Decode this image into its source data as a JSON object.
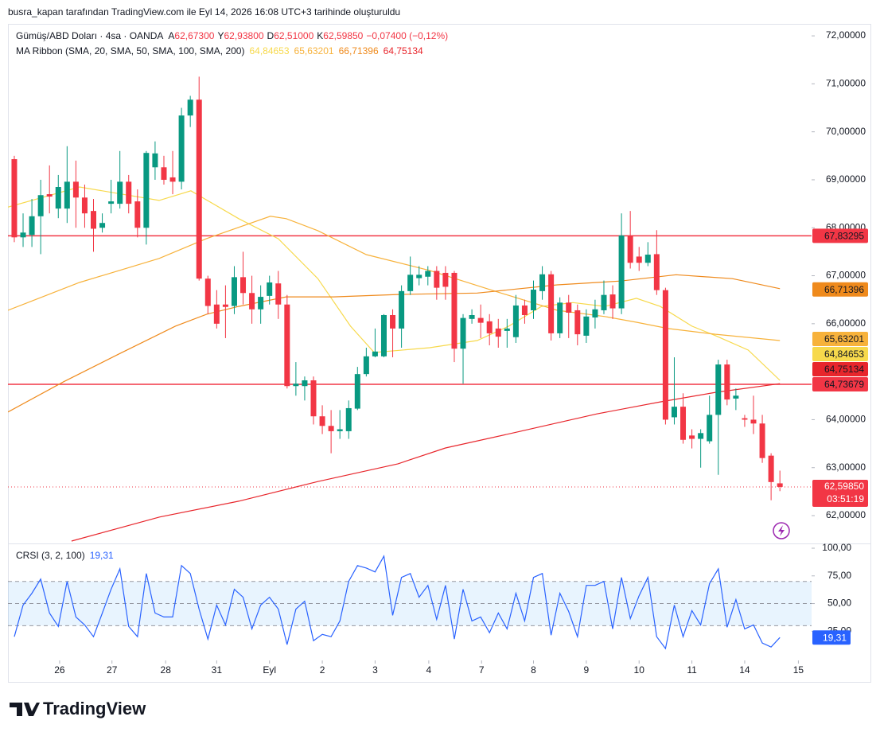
{
  "header": {
    "caption": "busra_kapan tarafından TradingView.com ile Eyl 14, 2026 16:08 UTC+3 tarihinde oluşturuldu",
    "symbol": "Gümüş/ABD Doları · 4sa · OANDA",
    "ohlc": [
      {
        "key": "A",
        "value": "62,67300"
      },
      {
        "key": "Y",
        "value": "62,93800"
      },
      {
        "key": "D",
        "value": "62,51000"
      },
      {
        "key": "K",
        "value": "62,59850"
      }
    ],
    "change": "−0,07400 (−0,12%)",
    "indicator": "MA Ribbon (SMA, 20, SMA, 50, SMA, 100, SMA, 200)",
    "brand": "TradingView"
  },
  "chart_data": [
    {
      "type": "candlestick",
      "up_color": "#089981",
      "down_color": "#f23645",
      "xlim": [
        -0.72,
        90.6
      ],
      "ylim": [
        61.42,
        72.25
      ],
      "xticks": [
        {
          "value": 5.15,
          "label": "26"
        },
        {
          "value": 11.1,
          "label": "27"
        },
        {
          "value": 17.2,
          "label": "28"
        },
        {
          "value": 23.0,
          "label": "31"
        },
        {
          "value": 29.0,
          "label": "Eyl"
        },
        {
          "value": 35.0,
          "label": "2"
        },
        {
          "value": 41.0,
          "label": "3"
        },
        {
          "value": 47.1,
          "label": "4"
        },
        {
          "value": 53.1,
          "label": "7"
        },
        {
          "value": 59.0,
          "label": "8"
        },
        {
          "value": 65.0,
          "label": "9"
        },
        {
          "value": 71.0,
          "label": "10"
        },
        {
          "value": 77.0,
          "label": "11"
        },
        {
          "value": 83.0,
          "label": "14"
        },
        {
          "value": 89.1,
          "label": "15"
        }
      ],
      "yticks": [
        {
          "value": 72,
          "label": "72,00000"
        },
        {
          "value": 71,
          "label": "71,00000"
        },
        {
          "value": 70,
          "label": "70,00000"
        },
        {
          "value": 69,
          "label": "69,00000"
        },
        {
          "value": 68,
          "label": "68,00000"
        },
        {
          "value": 67,
          "label": "67,00000"
        },
        {
          "value": 66,
          "label": "66,00000"
        },
        {
          "value": 64,
          "label": "64,00000"
        },
        {
          "value": 63,
          "label": "63,00000"
        },
        {
          "value": 62,
          "label": "62,00000"
        }
      ],
      "open": [
        69.43,
        67.8,
        67.85,
        68.24,
        68.7,
        68.4,
        68.4,
        68.96,
        68.63,
        68.35,
        68.0,
        68.5,
        68.5,
        68.96,
        68.55,
        68.0,
        69.26,
        69.26,
        69.05,
        68.96,
        70.34,
        70.67,
        66.94,
        66.4,
        66.4,
        66.37,
        66.97,
        66.64,
        66.3,
        66.58,
        66.84,
        66.4,
        64.7,
        64.7,
        64.82,
        64.07,
        63.87,
        63.76,
        63.76,
        64.23,
        64.95,
        65.32,
        65.32,
        66.18,
        65.9,
        66.68,
        66.95,
        66.98,
        67.1,
        67.06,
        67.06,
        65.48,
        66.1,
        66.12,
        66.05,
        65.9,
        65.85,
        65.72,
        66.38,
        66.28,
        66.68,
        67.03,
        65.8,
        66.44,
        66.28,
        65.75,
        66.13,
        66.28,
        66.61,
        66.32,
        67.84,
        67.4,
        67.27,
        67.45,
        66.7,
        64.05,
        64.27,
        63.67,
        63.6,
        63.55,
        64.1,
        65.15,
        64.44,
        64.03,
        64.0,
        63.92,
        63.25,
        62.673
      ],
      "high": [
        69.5,
        68.3,
        68.6,
        69.0,
        69.3,
        69.1,
        69.7,
        69.4,
        68.9,
        68.6,
        68.3,
        69.0,
        69.6,
        69.1,
        68.8,
        69.6,
        69.8,
        69.5,
        69.6,
        70.5,
        70.75,
        71.15,
        67.0,
        66.7,
        66.8,
        67.2,
        67.5,
        67.0,
        66.8,
        67.0,
        67.1,
        66.6,
        65.2,
        64.9,
        64.9,
        64.3,
        64.2,
        64.2,
        64.4,
        65.1,
        65.5,
        65.9,
        66.2,
        66.3,
        66.8,
        67.4,
        67.2,
        67.2,
        67.2,
        67.2,
        67.1,
        66.2,
        66.3,
        66.4,
        66.2,
        66.1,
        66.1,
        66.6,
        66.5,
        66.9,
        67.2,
        67.1,
        66.55,
        66.6,
        66.4,
        66.3,
        66.5,
        66.9,
        66.8,
        68.3,
        68.35,
        67.6,
        67.7,
        67.95,
        66.75,
        65.3,
        64.55,
        63.8,
        63.8,
        64.5,
        65.25,
        65.25,
        64.65,
        64.1,
        64.5,
        64.1,
        63.3,
        62.938
      ],
      "low": [
        67.7,
        67.6,
        67.6,
        67.45,
        68.3,
        68.2,
        68.1,
        68.0,
        68.0,
        67.5,
        67.9,
        68.3,
        68.4,
        68.3,
        67.8,
        67.65,
        69.0,
        68.9,
        68.7,
        68.8,
        70.1,
        66.9,
        66.2,
        65.9,
        65.7,
        66.2,
        66.4,
        66.0,
        66.0,
        66.4,
        66.1,
        64.65,
        64.5,
        64.4,
        63.9,
        63.7,
        63.3,
        63.6,
        63.6,
        64.2,
        64.9,
        65.3,
        65.3,
        65.3,
        65.5,
        66.6,
        66.8,
        66.8,
        66.5,
        66.5,
        65.2,
        64.75,
        66.0,
        65.7,
        65.55,
        65.5,
        65.5,
        65.6,
        66.0,
        66.1,
        66.5,
        65.65,
        65.7,
        65.7,
        65.55,
        65.6,
        65.9,
        66.2,
        66.1,
        66.2,
        67.15,
        67.1,
        67.2,
        66.6,
        63.9,
        63.9,
        63.5,
        63.4,
        63.0,
        63.5,
        62.85,
        64.3,
        64.2,
        63.85,
        63.7,
        63.1,
        62.32,
        62.51
      ],
      "close": [
        67.8,
        67.9,
        68.24,
        68.68,
        68.65,
        68.85,
        68.96,
        68.63,
        68.3,
        67.98,
        68.1,
        68.55,
        68.96,
        68.5,
        68.0,
        69.56,
        69.55,
        69.0,
        68.96,
        70.34,
        70.67,
        66.94,
        66.37,
        66.0,
        66.35,
        66.97,
        66.64,
        66.3,
        66.56,
        66.86,
        66.4,
        64.7,
        64.75,
        64.82,
        64.07,
        63.87,
        63.76,
        63.8,
        64.24,
        64.95,
        65.32,
        65.42,
        66.18,
        65.9,
        66.68,
        67.02,
        67.02,
        67.1,
        66.75,
        66.77,
        65.48,
        66.12,
        66.18,
        66.02,
        65.8,
        65.73,
        65.9,
        66.38,
        66.18,
        66.71,
        67.03,
        65.8,
        66.44,
        66.23,
        65.78,
        66.15,
        66.3,
        66.6,
        66.32,
        67.84,
        67.27,
        67.27,
        67.44,
        66.7,
        64.0,
        64.27,
        63.58,
        63.6,
        63.72,
        64.1,
        65.15,
        64.42,
        64.5,
        64.0,
        63.92,
        63.2,
        62.7,
        62.5985
      ],
      "series": [
        {
          "color": "#f7d94c",
          "text_color": "#131722",
          "label": "64,84653",
          "last": 64.84653,
          "x": [
            -0.72,
            7.41,
            16.46,
            20.07,
            25.5,
            30.0,
            34.5,
            38.2,
            40.9,
            47.2,
            52.6,
            56.2,
            59.9,
            63.5,
            67.1,
            70.7,
            73.4,
            77.0,
            79.7,
            83.4,
            87.0
          ],
          "values": [
            68.43,
            68.85,
            68.57,
            68.77,
            68.19,
            67.77,
            66.94,
            65.95,
            65.4,
            65.5,
            65.65,
            65.95,
            66.36,
            66.44,
            66.36,
            66.53,
            66.36,
            65.95,
            65.75,
            65.45,
            64.82
          ]
        },
        {
          "color": "#f7b23b",
          "text_color": "#131722",
          "label": "65,63201",
          "last": 65.63201,
          "x": [
            -0.72,
            7.41,
            16.46,
            21.8,
            29.1,
            30.9,
            34.5,
            40.0,
            47.2,
            54.4,
            61.7,
            67.1,
            70.7,
            74.3,
            79.7,
            87.0
          ],
          "values": [
            66.28,
            66.86,
            67.36,
            67.77,
            68.24,
            68.19,
            67.94,
            67.44,
            67.11,
            66.69,
            66.28,
            66.15,
            66.03,
            65.9,
            65.78,
            65.65
          ]
        },
        {
          "color": "#ef8a1c",
          "text_color": "#ffffff",
          "label": "66,71396",
          "last": 66.71396,
          "x": [
            -0.72,
            5.6,
            11.9,
            18.3,
            21.9,
            25.5,
            30.9,
            36.3,
            43.6,
            52.6,
            61.7,
            68.9,
            75.2,
            81.6,
            87.0
          ],
          "values": [
            64.16,
            64.79,
            65.37,
            65.95,
            66.2,
            66.36,
            66.56,
            66.56,
            66.61,
            66.64,
            66.81,
            66.89,
            67.02,
            66.94,
            66.73
          ]
        },
        {
          "color": "#e8262c",
          "text_color": "#ffffff",
          "label": "64,75134",
          "last": 64.75134,
          "x": [
            6.5,
            16.5,
            25.5,
            34.5,
            43.6,
            49.0,
            57.1,
            66.2,
            73.4,
            79.7,
            87.0
          ],
          "values": [
            61.47,
            61.97,
            62.3,
            62.71,
            63.08,
            63.41,
            63.74,
            64.12,
            64.37,
            64.57,
            64.75
          ]
        }
      ],
      "hlines": [
        {
          "value": 67.83295,
          "label": "67,83295",
          "color": "#f23645"
        },
        {
          "value": 64.73679,
          "label": "64,73679",
          "color": "#f23645"
        }
      ],
      "last_price": {
        "value": 62.5985,
        "label": "62,59850",
        "countdown": "03:51:19",
        "color": "#f23645"
      }
    },
    {
      "type": "line",
      "title": "CRSI (3, 2, 100)",
      "color": "#2962ff",
      "value_label": "19,31",
      "xlim": [
        -0.72,
        90.6
      ],
      "ylim": [
        -1.4,
        103.6
      ],
      "yticks": [
        {
          "value": 100,
          "label": "100,00"
        },
        {
          "value": 75,
          "label": "75,00"
        },
        {
          "value": 50,
          "label": "50,00"
        },
        {
          "value": 25,
          "label": "25,00"
        }
      ],
      "band": [
        30,
        70
      ],
      "levels": [
        70,
        50,
        30
      ],
      "values": [
        20,
        48.6,
        59.3,
        72.1,
        41.4,
        29.3,
        70,
        37.9,
        30.7,
        20,
        41.4,
        62.9,
        81.4,
        29.3,
        20,
        77.1,
        41.4,
        37.9,
        37.9,
        84.3,
        77.1,
        45,
        17.9,
        48.6,
        30.7,
        62.9,
        55.7,
        27.1,
        48.6,
        55.7,
        45,
        12.9,
        45,
        52.1,
        16.4,
        22.1,
        20,
        34.3,
        70,
        84.3,
        82.1,
        78.6,
        92.9,
        39.3,
        73.6,
        77.1,
        55.7,
        66.4,
        35.7,
        66.4,
        17.9,
        62.9,
        34.3,
        37.9,
        23.6,
        41.4,
        27.1,
        59.3,
        34.3,
        73.6,
        77.1,
        21.4,
        59.3,
        42.9,
        20,
        66.4,
        66.4,
        70,
        27.1,
        73.6,
        36.4,
        57.1,
        73.6,
        20,
        9.3,
        48.6,
        20,
        43.6,
        30.7,
        67.9,
        81.4,
        28.6,
        53.6,
        27.1,
        30.7,
        14.3,
        10.7,
        19.31
      ]
    }
  ]
}
